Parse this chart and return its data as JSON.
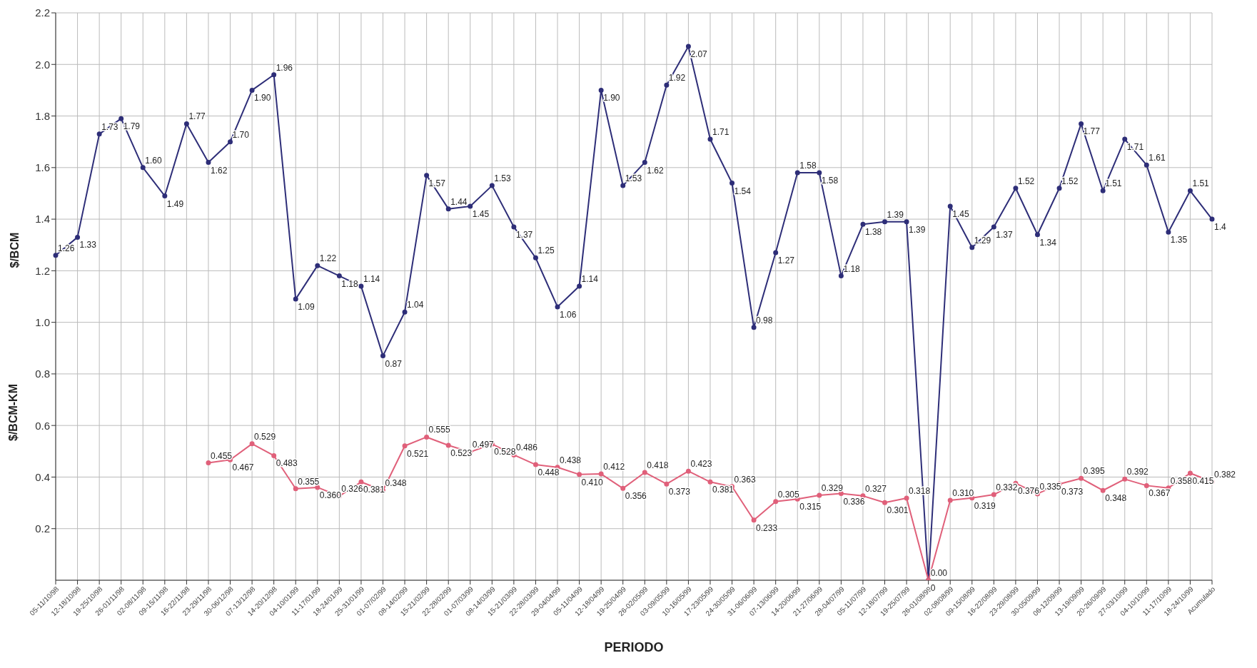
{
  "chart_data": {
    "type": "line",
    "xlabel": "PERIODO",
    "ylabel": "$/BCM",
    "annotations": [
      "$/BCM-KM"
    ],
    "categories": [
      "05-11/10/98",
      "12-18/10/98",
      "19-25/10/98",
      "26-01/11/98",
      "02-08/11/98",
      "09-15/11/98",
      "16-22/11/98",
      "23-29/11/98",
      "30-06/12/98",
      "07-13/12/98",
      "14-20/12/98",
      "04-10/01/99",
      "11-17/01/99",
      "18-24/01/99",
      "25-31/01/99",
      "01-07/02/99",
      "08-14/02/99",
      "15-21/02/99",
      "22-28/02/99",
      "01-07/03/99",
      "08-14/03/99",
      "15-21/03/99",
      "22-28/03/99",
      "29-04/04/99",
      "05-11/04/99",
      "12-18/04/99",
      "19-25/04/99",
      "26-02/05/99",
      "03-09/05/99",
      "10-16/05/99",
      "17-23/05/99",
      "24-30/05/99",
      "31-06/06/99",
      "07-13/06/99",
      "14-20/06/99",
      "21-27/06/99",
      "28-04/07/99",
      "05-11/07/99",
      "12-18/07/99",
      "19-25/07/99",
      "26-01/08/99",
      "02-08/08/99",
      "09-15/08/99",
      "16-22/08/99",
      "23-29/08/99",
      "30-05/09/99",
      "06-12/09/99",
      "13-19/09/99",
      "20-26/09/99",
      "27-03/10/99",
      "04-10/10/99",
      "11-17/10/99",
      "18-24/10/99",
      "Acumulado"
    ],
    "series": [
      {
        "color": "#2e2e78",
        "values": [
          1.26,
          1.33,
          1.73,
          1.79,
          1.6,
          1.49,
          1.77,
          1.62,
          1.7,
          1.9,
          1.96,
          1.09,
          1.22,
          1.18,
          1.14,
          0.87,
          1.04,
          1.57,
          1.44,
          1.45,
          1.53,
          1.37,
          1.25,
          1.06,
          1.14,
          1.9,
          1.53,
          1.62,
          1.92,
          2.07,
          1.71,
          1.54,
          0.98,
          1.27,
          1.58,
          1.58,
          1.18,
          1.38,
          1.39,
          1.39,
          0,
          1.45,
          1.29,
          1.37,
          1.52,
          1.34,
          1.52,
          1.77,
          1.51,
          1.71,
          1.61,
          1.35,
          1.51,
          1.4
        ],
        "value_labels": [
          "1.26",
          "1.33",
          "1.73",
          "1.79",
          "1.60",
          "1.49",
          "1.77",
          "1.62",
          "1.70",
          "1.90",
          "1.96",
          "1.09",
          "1.22",
          "1.18",
          "1.14",
          "0.87",
          "1.04",
          "1.57",
          "1.44",
          "1.45",
          "1.53",
          "1.37",
          "1.25",
          "1.06",
          "1.14",
          "1.90",
          "1.53",
          "1.62",
          "1.92",
          "2.07",
          "1.71",
          "1.54",
          "0.98",
          "1.27",
          "1.58",
          "1.58",
          "1.18",
          "1.38",
          "1.39",
          "1.39",
          "0.00",
          "1.45",
          "1.29",
          "1.37",
          "1.52",
          "1.34",
          "1.52",
          "1.77",
          "1.51",
          "1.71",
          "1.61",
          "1.35",
          "1.51",
          "1.4"
        ]
      },
      {
        "color": "#e0607a",
        "values": [
          null,
          null,
          null,
          null,
          null,
          null,
          null,
          0.455,
          0.467,
          0.529,
          0.483,
          0.355,
          0.36,
          0.326,
          0.381,
          0.348,
          0.521,
          0.555,
          0.523,
          0.497,
          0.528,
          0.486,
          0.448,
          0.438,
          0.41,
          0.412,
          0.356,
          0.418,
          0.373,
          0.423,
          0.381,
          0.363,
          0.233,
          0.305,
          0.315,
          0.329,
          0.336,
          0.327,
          0.301,
          0.318,
          0,
          0.31,
          0.319,
          0.332,
          0.376,
          0.335,
          0.373,
          0.395,
          0.348,
          0.392,
          0.367,
          0.358,
          0.415,
          0.382
        ],
        "value_labels": [
          null,
          null,
          null,
          null,
          null,
          null,
          null,
          "0.455",
          "0.467",
          "0.529",
          "0.483",
          "0.355",
          "0.360",
          "0.326",
          "0.381",
          "0.348",
          "0.521",
          "0.555",
          "0.523",
          "0.497",
          "0.528",
          "0.486",
          "0.448",
          "0.438",
          "0.410",
          "0.412",
          "0.356",
          "0.418",
          "0.373",
          "0.423",
          "0.381",
          "0.363",
          "0.233",
          "0.305",
          "0.315",
          "0.329",
          "0.336",
          "0.327",
          "0.301",
          "0.318",
          "0",
          "0.310",
          "0.319",
          "0.332",
          "0.376",
          "0.335",
          "0.373",
          "0.395",
          "0.348",
          "0.392",
          "0.367",
          "0.358",
          "0.415",
          "0.382"
        ]
      }
    ],
    "ylim": [
      0,
      2.2
    ],
    "yticks": [
      0.2,
      0.4,
      0.6,
      0.8,
      {
        "value": 1,
        "label": "1.0"
      },
      1.2,
      1.4,
      1.6,
      1.8,
      {
        "value": 2,
        "label": "2.0"
      },
      2.2
    ],
    "grid": true,
    "marker": "circle",
    "line_style": "solid"
  }
}
